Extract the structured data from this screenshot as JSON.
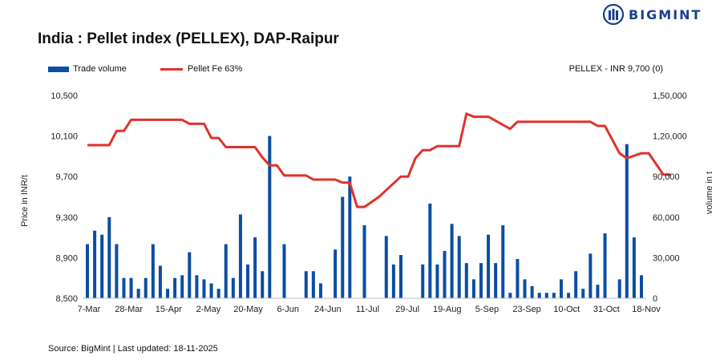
{
  "brand": {
    "logo_text": "BIGMINT",
    "logo_icon": "bigmint-logo-icon",
    "color": "#1a3f8f"
  },
  "title": "India : Pellet index (PELLEX), DAP-Raipur",
  "price_note": "PELLEX - INR 9,700 (0)",
  "source": "Source: BigMint | Last updated: 18-11-2025",
  "chart_data": {
    "type": "bar+line",
    "title": "India : Pellet index (PELLEX), DAP-Raipur",
    "legend_position": "top-left",
    "grid": false,
    "x_tick_labels": [
      "7-Mar",
      "28-Mar",
      "15-Apr",
      "2-May",
      "20-May",
      "6-Jun",
      "24-Jun",
      "11-Jul",
      "29-Jul",
      "19-Aug",
      "5-Sep",
      "23-Sep",
      "10-Oct",
      "31-Oct",
      "18-Nov"
    ],
    "y_left": {
      "label": "Price in INR/t",
      "min": 8500,
      "max": 10500,
      "ticks": [
        8500,
        8900,
        9300,
        9700,
        10100,
        10500
      ],
      "tick_labels": [
        "8,500",
        "8,900",
        "9,300",
        "9,700",
        "10,100",
        "10,500"
      ]
    },
    "y_right": {
      "label": "volume in t",
      "min": 0,
      "max": 150000,
      "ticks": [
        0,
        30000,
        60000,
        90000,
        120000,
        150000
      ],
      "tick_labels": [
        "0",
        "30,000",
        "60,000",
        "90,000",
        "1,20,000",
        "1,50,000"
      ]
    },
    "series": [
      {
        "name": "Trade volume",
        "type": "bar",
        "axis": "right",
        "color": "#0b4ea2",
        "values": [
          40000,
          50000,
          47000,
          60000,
          40000,
          15000,
          15000,
          7000,
          15000,
          40000,
          24000,
          7000,
          15000,
          17000,
          34000,
          17000,
          14000,
          11000,
          7000,
          40000,
          15000,
          62000,
          25000,
          45000,
          20000,
          120000,
          0,
          40000,
          0,
          0,
          20000,
          20000,
          11000,
          0,
          36000,
          75000,
          90000,
          0,
          54000,
          0,
          0,
          46000,
          25000,
          32000,
          0,
          0,
          25000,
          70000,
          25000,
          35000,
          55000,
          46000,
          26000,
          14000,
          26000,
          47000,
          26000,
          54000,
          4000,
          29000,
          14000,
          9000,
          4000,
          4000,
          4000,
          14000,
          4000,
          20000,
          7000,
          33000,
          10000,
          48000,
          0,
          14000,
          114000,
          45000,
          17000
        ]
      },
      {
        "name": "Pellet Fe 63%",
        "type": "line",
        "axis": "left",
        "color": "#e0322b",
        "points": [
          [
            0,
            10010
          ],
          [
            3,
            10010
          ],
          [
            4,
            10150
          ],
          [
            5,
            10150
          ],
          [
            6,
            10260
          ],
          [
            13,
            10260
          ],
          [
            14,
            10220
          ],
          [
            16,
            10220
          ],
          [
            17,
            10080
          ],
          [
            18,
            10080
          ],
          [
            19,
            9990
          ],
          [
            23,
            9990
          ],
          [
            24,
            9890
          ],
          [
            25,
            9810
          ],
          [
            26,
            9810
          ],
          [
            27,
            9710
          ],
          [
            30,
            9710
          ],
          [
            31,
            9670
          ],
          [
            34,
            9670
          ],
          [
            35,
            9640
          ],
          [
            36,
            9640
          ],
          [
            37,
            9400
          ],
          [
            38,
            9400
          ],
          [
            40,
            9500
          ],
          [
            43,
            9700
          ],
          [
            44,
            9700
          ],
          [
            45,
            9880
          ],
          [
            46,
            9960
          ],
          [
            47,
            9960
          ],
          [
            48,
            10000
          ],
          [
            51,
            10000
          ],
          [
            52,
            10320
          ],
          [
            53,
            10290
          ],
          [
            55,
            10290
          ],
          [
            58,
            10170
          ],
          [
            59,
            10240
          ],
          [
            69,
            10240
          ],
          [
            70,
            10200
          ],
          [
            71,
            10200
          ],
          [
            73,
            9930
          ],
          [
            74,
            9880
          ],
          [
            76,
            9930
          ],
          [
            77,
            9930
          ],
          [
            79,
            9720
          ],
          [
            80,
            9720
          ]
        ]
      }
    ]
  }
}
